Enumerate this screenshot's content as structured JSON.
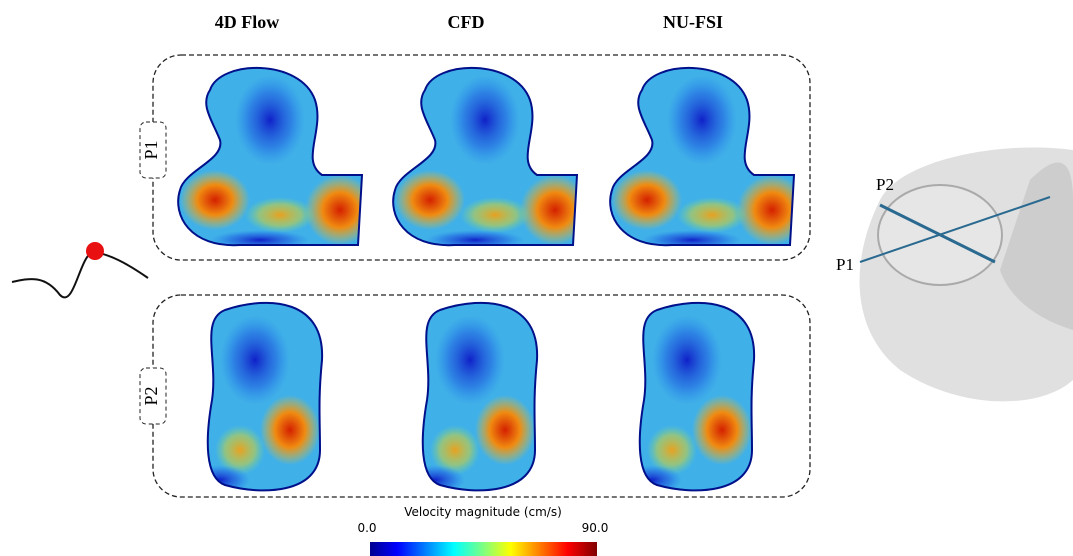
{
  "columns": [
    "4D Flow",
    "CFD",
    "NU-FSI"
  ],
  "rows": [
    "P1",
    "P2"
  ],
  "colorbar": {
    "title": "Velocity magnitude (cm/s)",
    "min": "0.0",
    "max": "90.0"
  },
  "model_labels": [
    "P2",
    "P1"
  ]
}
